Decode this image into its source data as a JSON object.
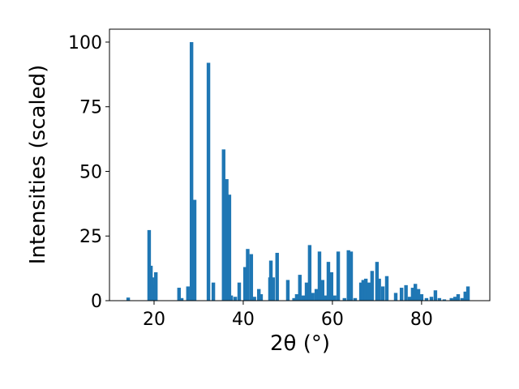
{
  "chart_data": {
    "type": "bar",
    "xlabel": "2θ (°)",
    "ylabel": "Intensities (scaled)",
    "color": "#1f77b4",
    "x": [
      14.2,
      18.9,
      19.3,
      19.6,
      20.0,
      20.4,
      25.6,
      26.2,
      27.6,
      28.4,
      29.1,
      32.2,
      33.3,
      35.6,
      36.3,
      36.9,
      37.3,
      38.2,
      39.1,
      40.4,
      41.0,
      41.8,
      42.5,
      43.5,
      44.0,
      46.0,
      46.2,
      46.7,
      47.6,
      50.0,
      51.4,
      52.0,
      52.7,
      53.5,
      54.2,
      54.9,
      55.6,
      56.4,
      57.1,
      57.8,
      58.4,
      59.1,
      59.8,
      60.5,
      61.3,
      62.7,
      63.6,
      64.2,
      65.1,
      66.4,
      66.9,
      67.5,
      68.2,
      68.9,
      70.0,
      70.5,
      71.3,
      72.2,
      74.2,
      75.5,
      76.5,
      77.3,
      78.0,
      78.6,
      79.3,
      80.0,
      81.1,
      82.2,
      83.1,
      84.0,
      85.1,
      86.7,
      87.5,
      88.2,
      89.1,
      89.8,
      90.4
    ],
    "values": [
      1.2,
      27.3,
      13.5,
      9,
      6,
      11,
      5,
      1,
      5.5,
      100,
      39,
      92,
      7,
      58.5,
      47,
      41,
      2,
      1.5,
      7,
      13,
      20,
      18,
      1.5,
      4.5,
      2.5,
      9,
      15.5,
      9,
      18.5,
      8,
      1,
      2.5,
      10,
      2,
      7,
      21.5,
      3,
      4.5,
      19,
      8,
      2,
      15,
      11,
      2,
      19,
      1,
      19.5,
      19,
      1,
      7,
      8,
      8.5,
      7,
      11.5,
      15,
      8.5,
      5.5,
      9.5,
      3,
      5,
      6,
      1.5,
      5,
      6.5,
      4.5,
      2.5,
      1,
      1.5,
      4,
      1,
      0.5,
      1,
      1.5,
      2.5,
      1,
      3.5,
      5.5
    ],
    "xlim": [
      10,
      95.3
    ],
    "ylim": [
      0,
      105
    ],
    "xticks": [
      20,
      40,
      60,
      80
    ],
    "yticks": [
      0,
      25,
      50,
      75,
      100
    ]
  }
}
